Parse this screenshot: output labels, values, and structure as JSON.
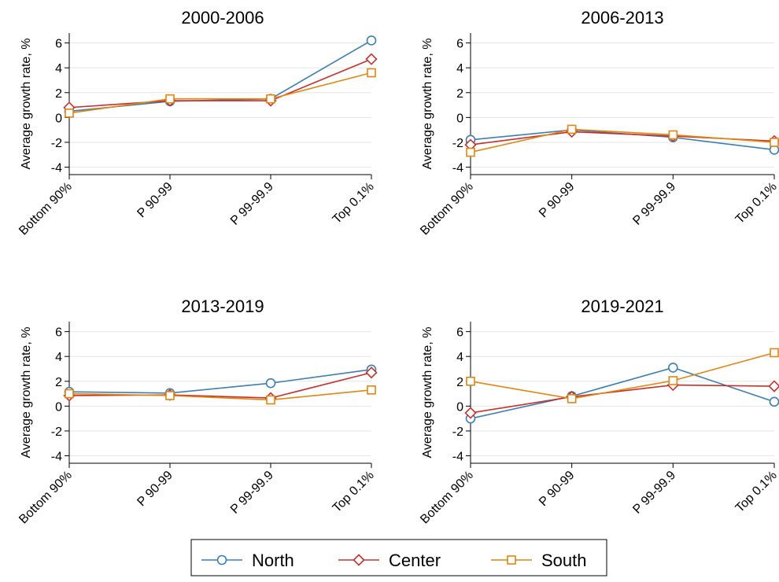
{
  "colors": {
    "North": "#3b7fb5",
    "Center": "#c9302c",
    "South": "#e1860e"
  },
  "legend": {
    "items": [
      {
        "name": "North",
        "marker": "circle"
      },
      {
        "name": "Center",
        "marker": "diamond"
      },
      {
        "name": "South",
        "marker": "square"
      }
    ],
    "placement": "bottom"
  },
  "chart_data": [
    {
      "type": "line",
      "title": "2000-2006",
      "categories": [
        "Bottom 90%",
        "P 90-99",
        "P 99-99.9",
        "Top 0.1%"
      ],
      "ylabel": "Average growth rate, %",
      "xlabel": "",
      "ylim": [
        -4.6,
        6.8
      ],
      "yticks": [
        -4,
        -2,
        0,
        2,
        4,
        6
      ],
      "grid": true,
      "series": [
        {
          "name": "North",
          "values": [
            0.5,
            1.3,
            1.5,
            6.2
          ]
        },
        {
          "name": "Center",
          "values": [
            0.8,
            1.35,
            1.35,
            4.7
          ]
        },
        {
          "name": "South",
          "values": [
            0.35,
            1.5,
            1.5,
            3.6
          ]
        }
      ]
    },
    {
      "type": "line",
      "title": "2006-2013",
      "categories": [
        "Bottom 90%",
        "P 90-99",
        "P 99-99.9",
        "Top 0.1%"
      ],
      "ylabel": "Average growth rate, %",
      "xlabel": "",
      "ylim": [
        -4.6,
        6.8
      ],
      "yticks": [
        -4,
        -2,
        0,
        2,
        4,
        6
      ],
      "grid": true,
      "series": [
        {
          "name": "North",
          "values": [
            -1.8,
            -1.0,
            -1.6,
            -2.6
          ]
        },
        {
          "name": "Center",
          "values": [
            -2.2,
            -1.15,
            -1.5,
            -1.9
          ]
        },
        {
          "name": "South",
          "values": [
            -2.8,
            -0.95,
            -1.4,
            -2.0
          ]
        }
      ]
    },
    {
      "type": "line",
      "title": "2013-2019",
      "categories": [
        "Bottom 90%",
        "P 90-99",
        "P 99-99.9",
        "Top 0.1%"
      ],
      "ylabel": "Average growth rate, %",
      "xlabel": "",
      "ylim": [
        -4.6,
        6.8
      ],
      "yticks": [
        -4,
        -2,
        0,
        2,
        4,
        6
      ],
      "grid": true,
      "series": [
        {
          "name": "North",
          "values": [
            1.15,
            1.05,
            1.85,
            2.95
          ]
        },
        {
          "name": "Center",
          "values": [
            0.85,
            0.9,
            0.65,
            2.7
          ]
        },
        {
          "name": "South",
          "values": [
            1.0,
            0.85,
            0.5,
            1.3
          ]
        }
      ]
    },
    {
      "type": "line",
      "title": "2019-2021",
      "categories": [
        "Bottom 90%",
        "P 90-99",
        "P 99-99.9",
        "Top 0.1%"
      ],
      "ylabel": "Average growth rate, %",
      "xlabel": "",
      "ylim": [
        -4.6,
        6.8
      ],
      "yticks": [
        -4,
        -2,
        0,
        2,
        4,
        6
      ],
      "grid": true,
      "series": [
        {
          "name": "North",
          "values": [
            -1.0,
            0.8,
            3.1,
            0.35
          ]
        },
        {
          "name": "Center",
          "values": [
            -0.55,
            0.75,
            1.7,
            1.6
          ]
        },
        {
          "name": "South",
          "values": [
            2.0,
            0.6,
            2.05,
            4.3
          ]
        }
      ]
    }
  ]
}
